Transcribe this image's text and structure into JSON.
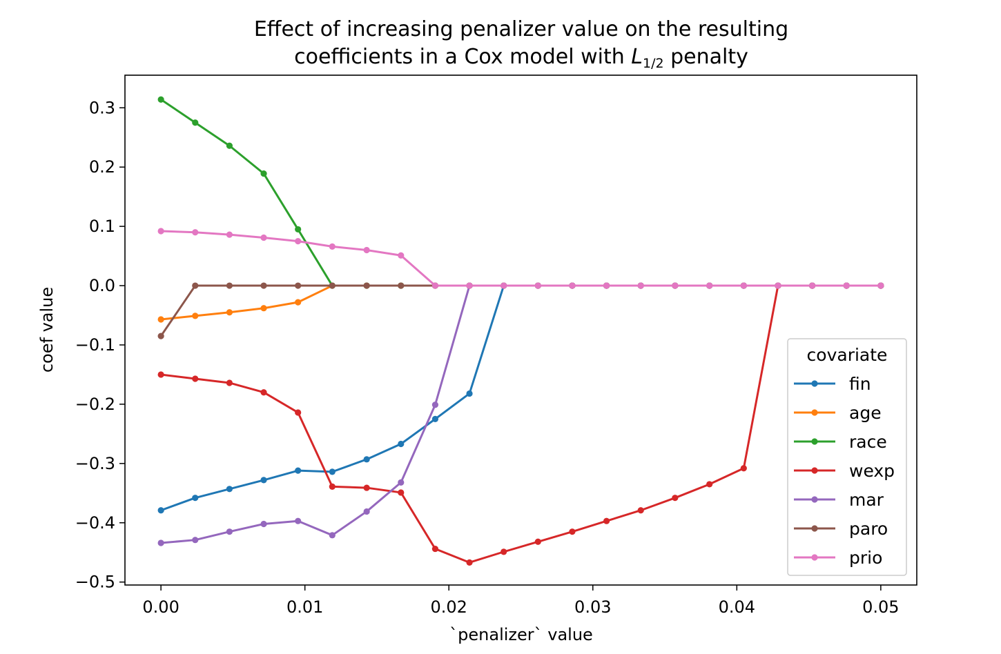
{
  "chart_data": {
    "type": "line",
    "title_line1": "Effect of increasing penalizer value on the resulting",
    "title_line2_pre": "coefficients in a Cox model with ",
    "title_line2_L": "L",
    "title_line2_sub": "1/2",
    "title_line2_post": " penalty",
    "xlabel": "`penalizer` value",
    "ylabel": "coef value",
    "xlim": [
      -0.0025,
      0.0525
    ],
    "ylim": [
      -0.505,
      0.355
    ],
    "xticks": [
      0.0,
      0.01,
      0.02,
      0.03,
      0.04,
      0.05
    ],
    "xtick_labels": [
      "0.00",
      "0.01",
      "0.02",
      "0.03",
      "0.04",
      "0.05"
    ],
    "yticks": [
      0.3,
      0.2,
      0.1,
      0.0,
      -0.1,
      -0.2,
      -0.3,
      -0.4,
      -0.5
    ],
    "ytick_labels": [
      "0.3",
      "0.2",
      "0.1",
      "0.0",
      "−0.1",
      "−0.2",
      "−0.3",
      "−0.4",
      "−0.5"
    ],
    "grid": false,
    "legend": {
      "title": "covariate",
      "position": "lower-right"
    },
    "x": [
      0.0,
      0.00238,
      0.00476,
      0.00714,
      0.00952,
      0.0119,
      0.01429,
      0.01667,
      0.01905,
      0.02143,
      0.02381,
      0.02619,
      0.02857,
      0.03095,
      0.03333,
      0.03571,
      0.0381,
      0.04048,
      0.04286,
      0.04524,
      0.04762,
      0.05
    ],
    "series": [
      {
        "name": "fin",
        "color": "#1f77b4",
        "values": [
          -0.379,
          -0.358,
          -0.343,
          -0.328,
          -0.312,
          -0.314,
          -0.293,
          -0.267,
          -0.225,
          -0.182,
          0,
          0,
          0,
          0,
          0,
          0,
          0,
          0,
          0,
          0,
          0,
          0
        ]
      },
      {
        "name": "age",
        "color": "#ff7f0e",
        "values": [
          -0.057,
          -0.051,
          -0.045,
          -0.038,
          -0.028,
          0,
          0,
          0,
          0,
          0,
          0,
          0,
          0,
          0,
          0,
          0,
          0,
          0,
          0,
          0,
          0,
          0
        ]
      },
      {
        "name": "race",
        "color": "#2ca02c",
        "values": [
          0.314,
          0.275,
          0.236,
          0.189,
          0.095,
          0,
          0,
          0,
          0,
          0,
          0,
          0,
          0,
          0,
          0,
          0,
          0,
          0,
          0,
          0,
          0,
          0
        ]
      },
      {
        "name": "wexp",
        "color": "#d62728",
        "values": [
          -0.15,
          -0.157,
          -0.164,
          -0.18,
          -0.214,
          -0.339,
          -0.341,
          -0.349,
          -0.444,
          -0.467,
          -0.449,
          -0.432,
          -0.415,
          -0.397,
          -0.379,
          -0.358,
          -0.335,
          -0.308,
          0,
          0,
          0,
          0
        ]
      },
      {
        "name": "mar",
        "color": "#9467bd",
        "values": [
          -0.434,
          -0.429,
          -0.415,
          -0.402,
          -0.397,
          -0.421,
          -0.381,
          -0.332,
          -0.201,
          0,
          0,
          0,
          0,
          0,
          0,
          0,
          0,
          0,
          0,
          0,
          0,
          0
        ]
      },
      {
        "name": "paro",
        "color": "#8c564b",
        "values": [
          -0.085,
          0,
          0,
          0,
          0,
          0,
          0,
          0,
          0,
          0,
          0,
          0,
          0,
          0,
          0,
          0,
          0,
          0,
          0,
          0,
          0,
          0
        ]
      },
      {
        "name": "prio",
        "color": "#e377c2",
        "values": [
          0.092,
          0.09,
          0.086,
          0.081,
          0.075,
          0.066,
          0.06,
          0.051,
          0,
          0,
          0,
          0,
          0,
          0,
          0,
          0,
          0,
          0,
          0,
          0,
          0,
          0
        ]
      }
    ]
  }
}
